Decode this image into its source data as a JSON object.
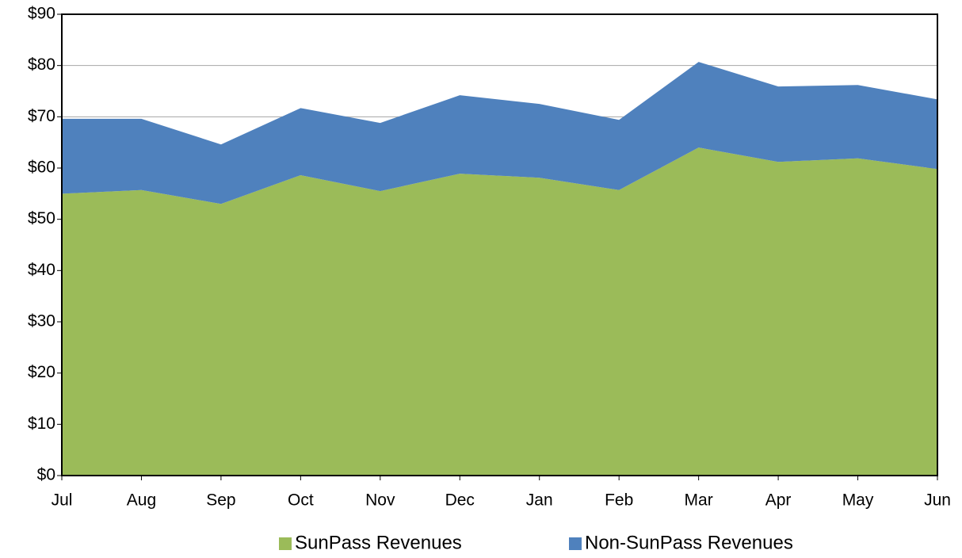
{
  "chart_data": {
    "type": "stacked_area",
    "categories": [
      "Jul",
      "Aug",
      "Sep",
      "Oct",
      "Nov",
      "Dec",
      "Jan",
      "Feb",
      "Mar",
      "Apr",
      "May",
      "Jun"
    ],
    "series": [
      {
        "name": "SunPass Revenues",
        "color": "#9bbb59",
        "values": [
          55.0,
          55.7,
          53.0,
          58.6,
          55.5,
          58.9,
          58.1,
          55.7,
          64.0,
          61.2,
          61.9,
          59.8
        ]
      },
      {
        "name": "Non-SunPass Revenues",
        "color": "#4f81bd",
        "values": [
          14.6,
          13.9,
          11.6,
          13.1,
          13.3,
          15.3,
          14.4,
          13.7,
          16.7,
          14.7,
          14.3,
          13.6
        ]
      }
    ],
    "ylim": [
      0,
      90
    ],
    "yticks": [
      {
        "value": 0,
        "label": "$0"
      },
      {
        "value": 10,
        "label": "$10"
      },
      {
        "value": 20,
        "label": "$20"
      },
      {
        "value": 30,
        "label": "$30"
      },
      {
        "value": 40,
        "label": "$40"
      },
      {
        "value": 50,
        "label": "$50"
      },
      {
        "value": 60,
        "label": "$60"
      },
      {
        "value": 70,
        "label": "$70"
      },
      {
        "value": 80,
        "label": "$80"
      },
      {
        "value": 90,
        "label": "$90"
      }
    ],
    "grid": true,
    "legend": "bottom"
  }
}
